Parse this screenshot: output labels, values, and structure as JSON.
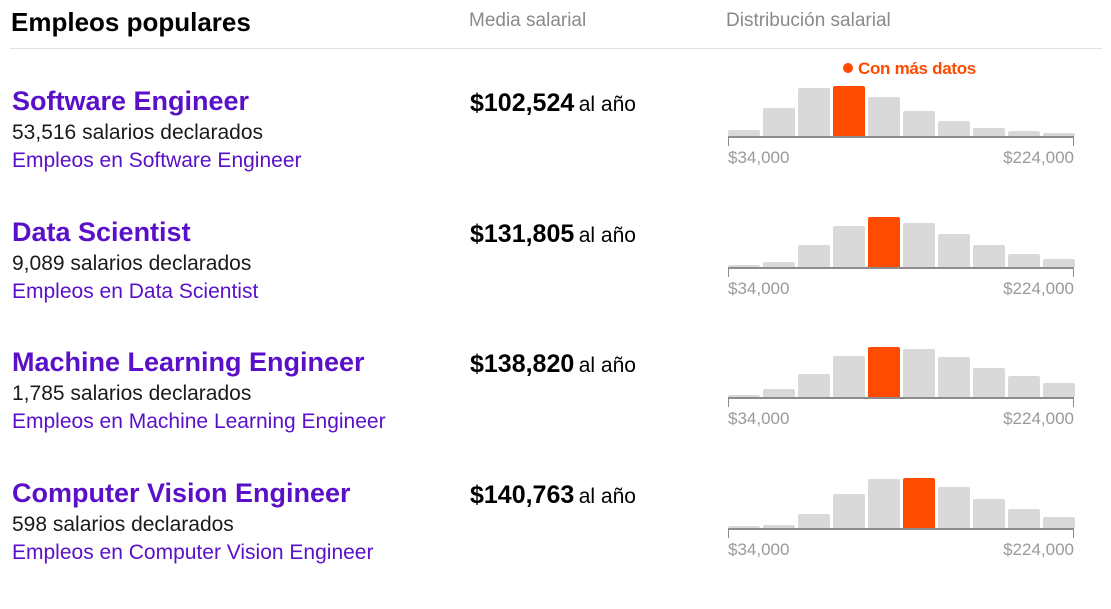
{
  "header": {
    "title": "Empleos populares",
    "median_label": "Media salarial",
    "distribution_label": "Distribución salarial"
  },
  "colors": {
    "link": "#5a0fc8",
    "highlight": "#ff4b00",
    "bar": "#d9d9d9"
  },
  "callout": "Con más datos",
  "jobs": [
    {
      "title": "Software Engineer",
      "count": "53,516 salarios declarados",
      "link": "Empleos en Software Engineer",
      "salary": "$102,524",
      "unit": "al año",
      "axis_min": "$34,000",
      "axis_max": "$224,000",
      "histogram": [
        6,
        30,
        51,
        53,
        41,
        27,
        16,
        9,
        5,
        3
      ],
      "highlight_index": 3
    },
    {
      "title": "Data Scientist",
      "count": "9,089 salarios declarados",
      "link": "Empleos en Data Scientist",
      "salary": "$131,805",
      "unit": "al año",
      "axis_min": "$34,000",
      "axis_max": "$224,000",
      "histogram": [
        0,
        5,
        23,
        43,
        53,
        47,
        35,
        23,
        14,
        8
      ],
      "highlight_index": 4
    },
    {
      "title": "Machine Learning Engineer",
      "count": "1,785 salarios declarados",
      "link": "Empleos en Machine Learning Engineer",
      "salary": "$138,820",
      "unit": "al año",
      "axis_min": "$34,000",
      "axis_max": "$224,000",
      "histogram": [
        0,
        8,
        24,
        43,
        53,
        51,
        42,
        31,
        22,
        15
      ],
      "highlight_index": 4
    },
    {
      "title": "Computer Vision Engineer",
      "count": "598 salarios declarados",
      "link": "Empleos en Computer Vision Engineer",
      "salary": "$140,763",
      "unit": "al año",
      "axis_min": "$34,000",
      "axis_max": "$224,000",
      "histogram": [
        0,
        3,
        15,
        36,
        52,
        53,
        43,
        31,
        20,
        12
      ],
      "highlight_index": 5
    }
  ]
}
